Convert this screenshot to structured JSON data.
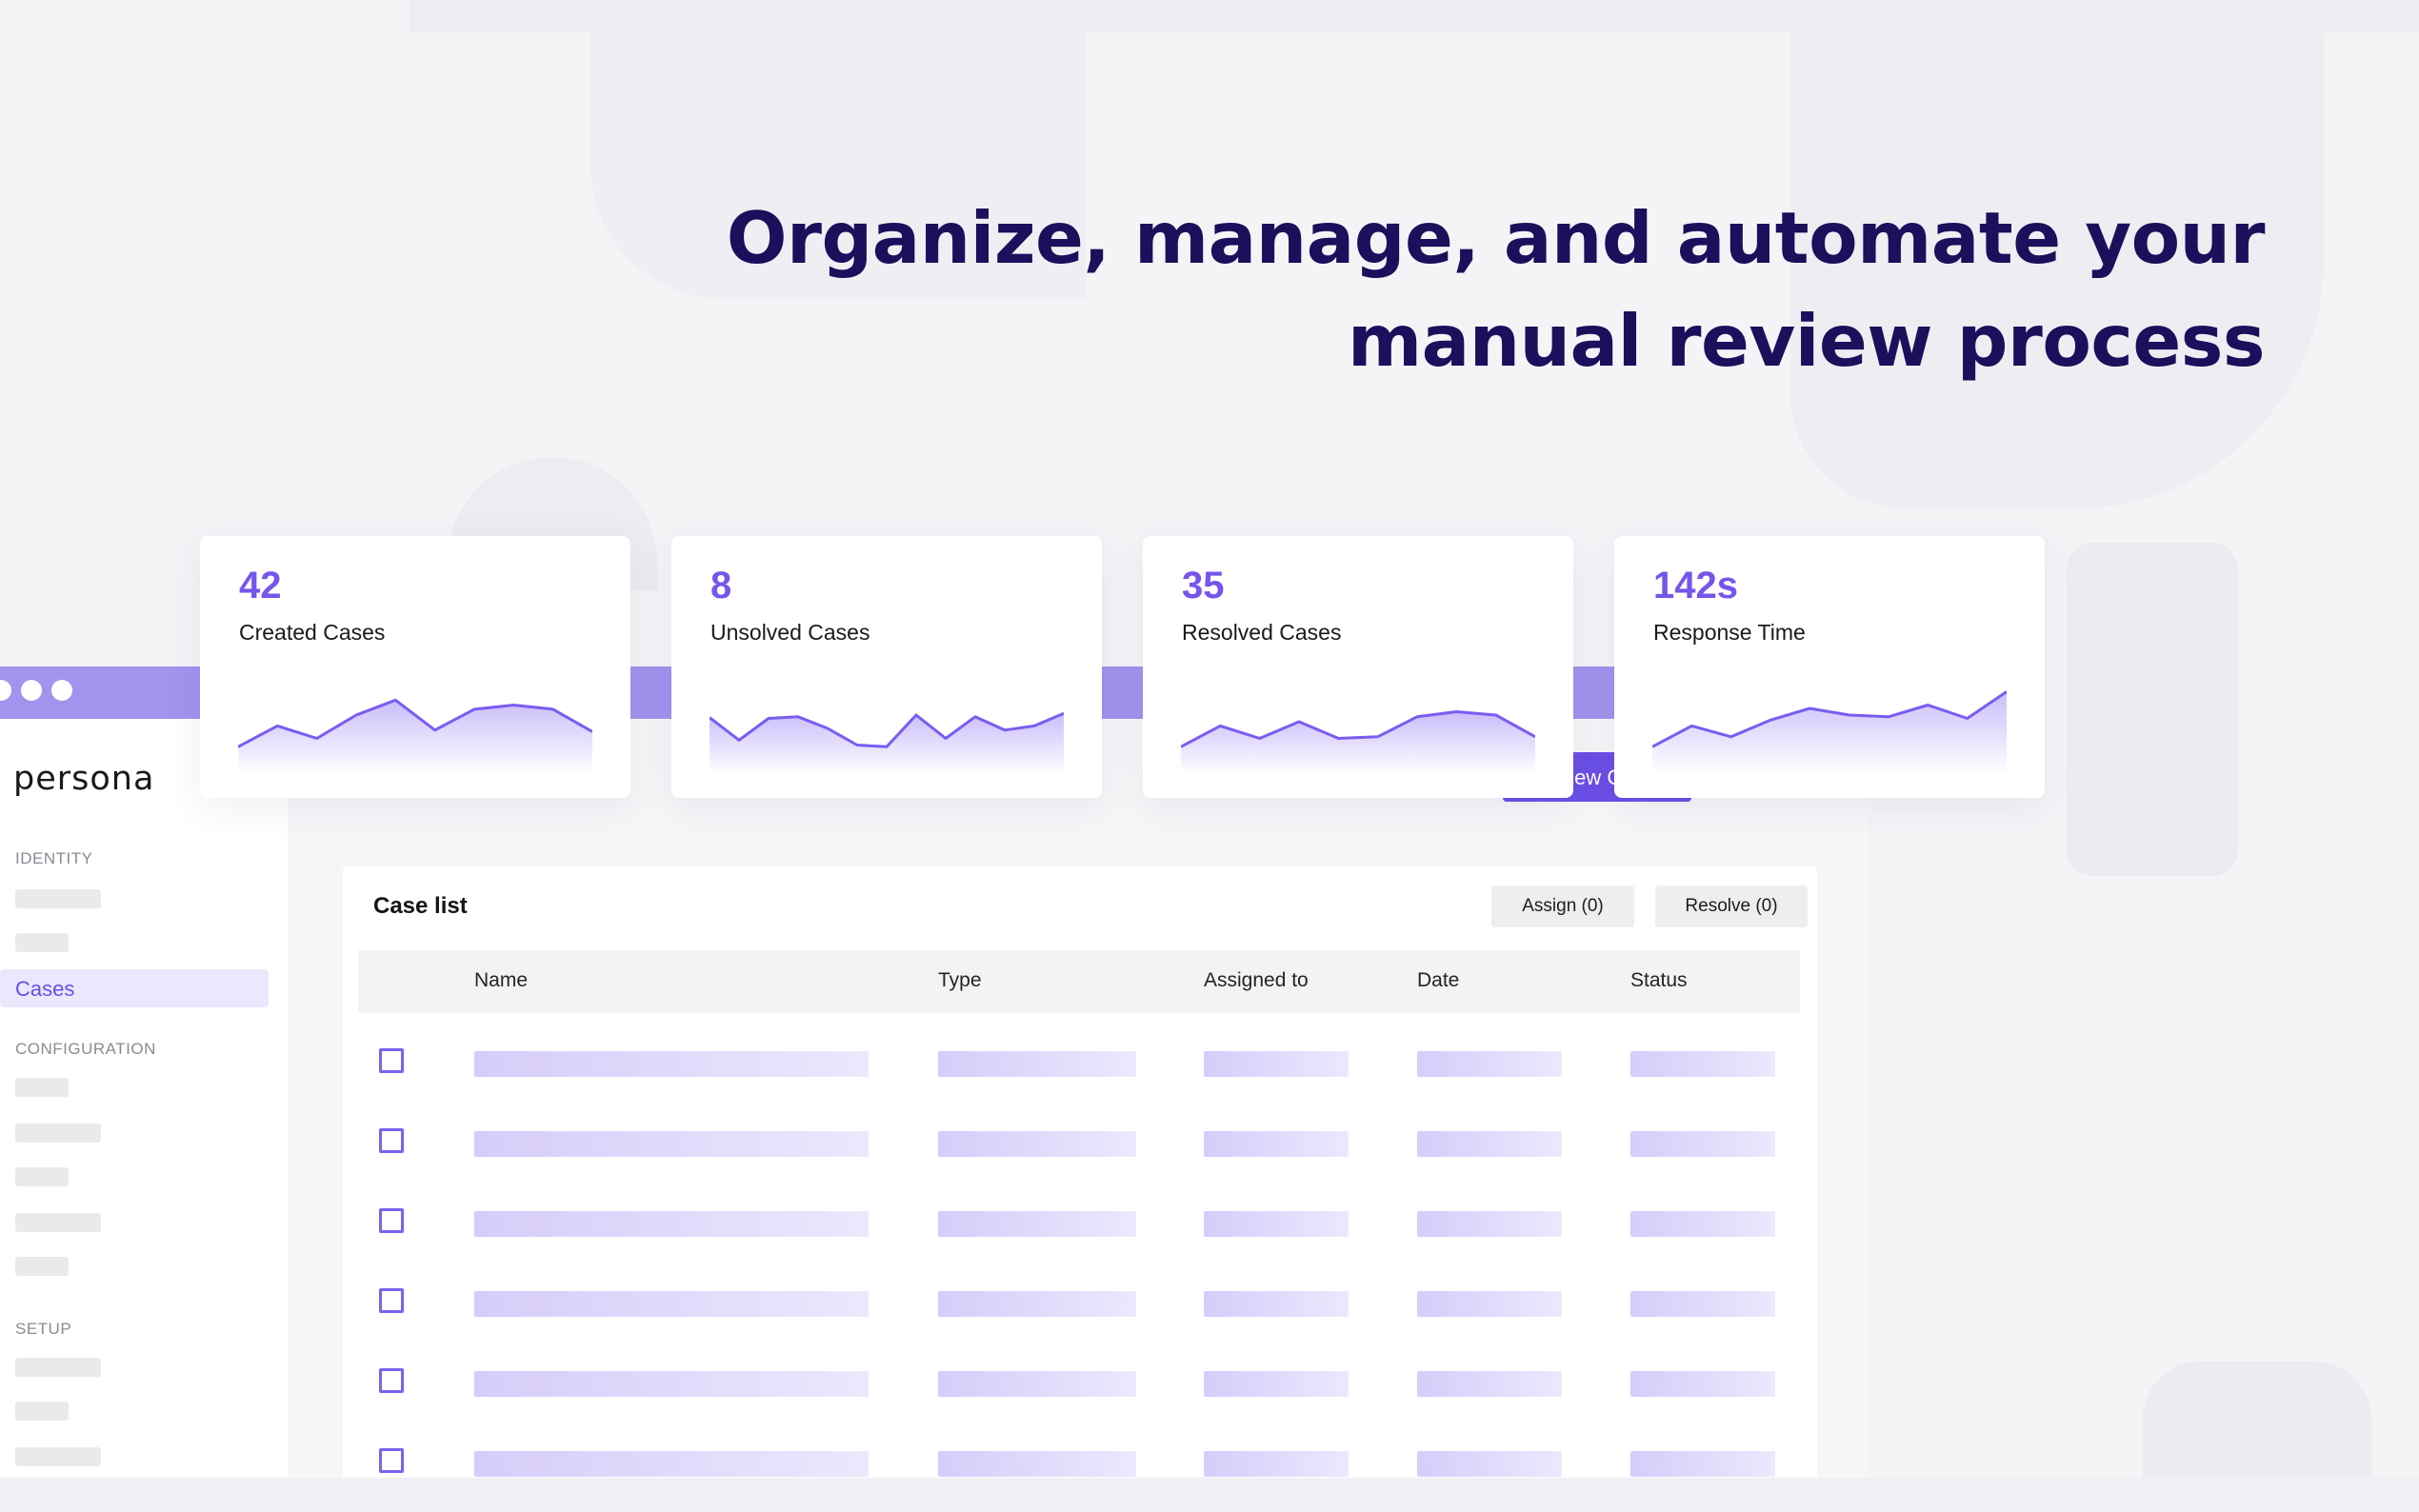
{
  "headline": {
    "line1": "Organize, manage, and automate your",
    "line2": "manual review process"
  },
  "colors": {
    "accent": "#6b4fe6",
    "stat_value": "#7655ea",
    "headline": "#1c0f5c",
    "appbar": "#a293ee",
    "sparkline": "#7a5cf0"
  },
  "stats": [
    {
      "value": "42",
      "label": "Created Cases",
      "trend": [
        10,
        35,
        20,
        48,
        66,
        30,
        55,
        60,
        55,
        28
      ]
    },
    {
      "value": "8",
      "label": "Unsolved Cases",
      "trend": [
        45,
        18,
        44,
        46,
        32,
        12,
        10,
        48,
        20,
        46,
        30,
        35,
        50
      ]
    },
    {
      "value": "35",
      "label": "Resolved Cases",
      "trend": [
        10,
        35,
        20,
        40,
        20,
        22,
        46,
        52,
        48,
        22
      ]
    },
    {
      "value": "142s",
      "label": "Response Time",
      "trend": [
        10,
        35,
        22,
        42,
        56,
        48,
        46,
        60,
        44,
        76
      ]
    }
  ],
  "app": {
    "logo": "persona",
    "primary_button_label": "View Cases"
  },
  "sidebar": {
    "sections": [
      {
        "label": "IDENTITY"
      },
      {
        "label": "CONFIGURATION"
      },
      {
        "label": "SETUP"
      }
    ],
    "active_item": "Cases"
  },
  "case_list": {
    "title": "Case list",
    "assign_label": "Assign (0)",
    "resolve_label": "Resolve (0)",
    "columns": [
      "Name",
      "Type",
      "Assigned to",
      "Date",
      "Status"
    ],
    "row_count": 6
  }
}
